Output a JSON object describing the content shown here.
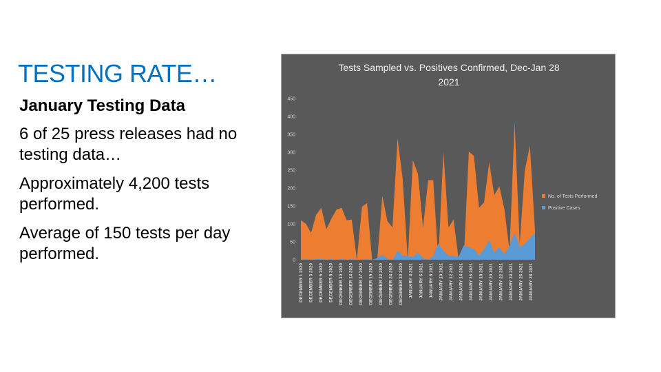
{
  "slide": {
    "title": "TESTING RATE…",
    "subheading": "January Testing Data",
    "paragraphs": [
      "6 of 25 press releases had no testing data…",
      "Approximately 4,200 tests performed.",
      "Average of 150 tests per day performed."
    ]
  },
  "chart_data": {
    "type": "area",
    "title": "Tests Sampled vs. Positives Confirmed, Dec-Jan 28 2021",
    "title_lines": [
      "Tests Sampled vs. Positives Confirmed, Dec-Jan 28",
      "2021"
    ],
    "ylim": [
      0,
      450
    ],
    "yticks": [
      0,
      50,
      100,
      150,
      200,
      250,
      300,
      350,
      400,
      450
    ],
    "xlabel": "",
    "ylabel": "",
    "legend_position": "right",
    "grid": false,
    "x_tick_labels": [
      "DECEMBER 1 2020",
      "DECEMBER 3 2020",
      "DECEMBER 5 2020",
      "DECEMBER 8 2020",
      "DECEMBER 10 2020",
      "DECEMBER 14 2020",
      "DECEMBER 17 2020",
      "DECEMBER 19 2020",
      "DECEMBER 22 2020",
      "DECEMBER 24 2020",
      "DECEMBER 30 2020",
      "JANUARY 4 2021",
      "JANUARY 6 2021",
      "JANUARY 8 2021",
      "JANUARY 10 2021",
      "JANUARY 12 2021",
      "JANUARY 14 2021",
      "JANUARY 16 2021",
      "JANUARY 18 2021",
      "JANUARY 20 2021",
      "JANUARY 22 2021",
      "JANUARY 24 2021",
      "JANUARY 26 2021",
      "JANUARY 28 2021"
    ],
    "series": [
      {
        "name": "No. of Tests Performed",
        "color": "#ed7d31",
        "values": [
          110,
          100,
          75,
          125,
          145,
          85,
          115,
          140,
          145,
          110,
          112,
          0,
          148,
          158,
          0,
          0,
          178,
          108,
          90,
          340,
          225,
          0,
          278,
          240,
          90,
          222,
          222,
          0,
          302,
          90,
          112,
          0,
          0,
          302,
          290,
          145,
          160,
          272,
          180,
          205,
          140,
          25,
          385,
          45,
          250,
          318,
          80
        ]
      },
      {
        "name": "Positive Cases",
        "color": "#5b9bd5",
        "values": [
          0,
          2,
          0,
          2,
          3,
          0,
          2,
          0,
          2,
          0,
          2,
          0,
          0,
          2,
          0,
          4,
          14,
          2,
          0,
          25,
          12,
          10,
          8,
          20,
          5,
          0,
          10,
          45,
          25,
          12,
          10,
          8,
          40,
          35,
          30,
          12,
          30,
          55,
          20,
          35,
          15,
          40,
          75,
          35,
          45,
          60,
          75
        ]
      }
    ]
  }
}
